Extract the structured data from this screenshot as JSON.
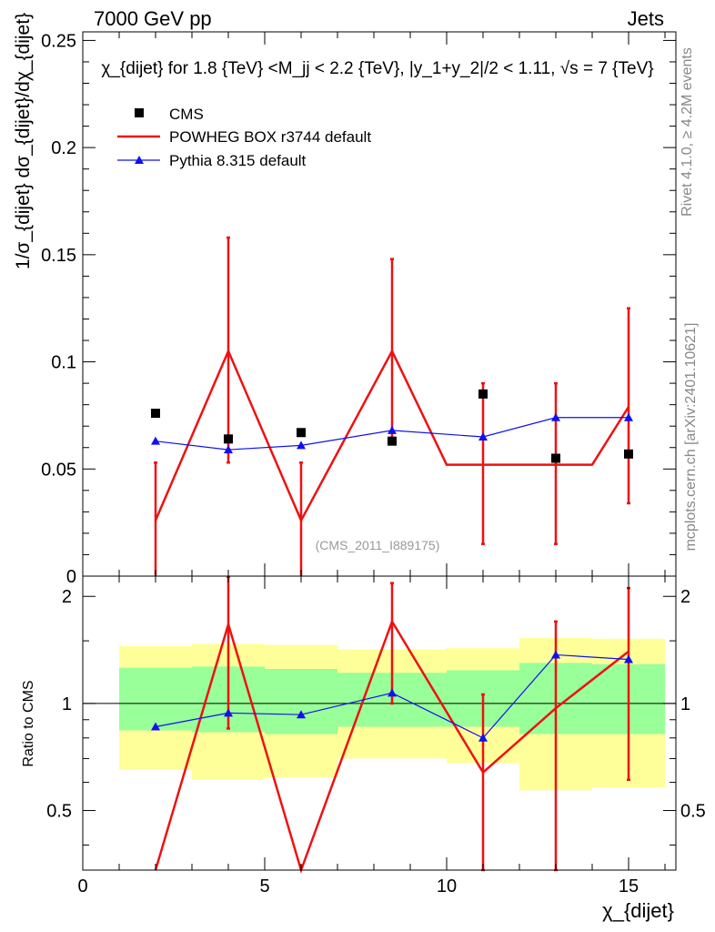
{
  "header": {
    "left_label": "7000 GeV pp",
    "right_label": "Jets"
  },
  "side_labels": {
    "rivet": "Rivet 4.1.0, ≥ 4.2M events",
    "mcplots": "mcplots.cern.ch [arXiv:2401.10621]"
  },
  "watermark": "(CMS_2011_I889175)",
  "colors": {
    "data": "#000000",
    "powheg": "#ee1111",
    "pythia": "#1111ee",
    "band_outer": "#ffff99",
    "band_inner": "#99ff99"
  },
  "chart_data": [
    {
      "type": "line",
      "panel": "main",
      "title": "χ_{dijet} for 1.8 {TeV} <M_jj < 2.2 {TeV}, |y_1+y_2|/2 < 1.11, √s = 7 {TeV}",
      "xlabel": "χ_{dijet}",
      "ylabel": "1/σ_{dijet} dσ_{dijet}/dχ_{dijet}",
      "xlim": [
        0,
        16.3
      ],
      "ylim": [
        0,
        0.254
      ],
      "xticks": [
        0,
        5,
        10,
        15
      ],
      "xticklabels": [
        "0",
        "5",
        "10",
        "15"
      ],
      "yticks": [
        0,
        0.05,
        0.1,
        0.15,
        0.2,
        0.25
      ],
      "yticklabels": [
        "0",
        "0.05",
        "0.1",
        "0.15",
        "0.2",
        "0.25"
      ],
      "legend": [
        "CMS",
        "POWHEG BOX r3744 default",
        "Pythia 8.315 default"
      ],
      "legend_position": "top-left",
      "series": [
        {
          "name": "CMS",
          "style": "markers",
          "x": [
            2,
            4,
            6,
            8.5,
            11,
            13,
            15
          ],
          "y": [
            0.076,
            0.064,
            0.067,
            0.063,
            0.085,
            0.055,
            0.057
          ]
        },
        {
          "name": "POWHEG BOX r3744 default",
          "style": "line-errorbars",
          "x": [
            2,
            4,
            6,
            8.5,
            11,
            13,
            15
          ],
          "y": [
            0.026,
            0.105,
            0.026,
            0.105,
            0.052,
            0.052,
            0.079
          ],
          "err_low": [
            0.052,
            0.052,
            0.052,
            0.043,
            0.037,
            0.037,
            0.045
          ],
          "err_high": [
            0.027,
            0.053,
            0.027,
            0.043,
            0.038,
            0.038,
            0.046
          ],
          "steps": [
            {
              "x": [
                1,
                3
              ],
              "y": 0.026
            },
            {
              "x": [
                3,
                5
              ],
              "y": 0.105
            },
            {
              "x": [
                5,
                7
              ],
              "y": 0.026
            },
            {
              "x": [
                7,
                10
              ],
              "y": 0.105
            },
            {
              "x": [
                10,
                12
              ],
              "y": 0.052
            },
            {
              "x": [
                12,
                14
              ],
              "y": 0.052
            },
            {
              "x": [
                14,
                16
              ],
              "y": 0.079
            }
          ]
        },
        {
          "name": "Pythia 8.315 default",
          "style": "line-triangles",
          "x": [
            2,
            4,
            6,
            8.5,
            11,
            13,
            15
          ],
          "y": [
            0.063,
            0.059,
            0.061,
            0.068,
            0.065,
            0.074,
            0.074
          ]
        }
      ]
    },
    {
      "type": "line",
      "panel": "ratio",
      "xlabel": "χ_{dijet}",
      "ylabel": "Ratio to CMS",
      "xlim": [
        0,
        16.3
      ],
      "ylim": [
        0.34,
        2.28
      ],
      "yticks": [
        0.5,
        1,
        2
      ],
      "yticklabels": [
        "0.5",
        "1",
        "2"
      ],
      "reference_line": 1,
      "bands": [
        {
          "x": [
            1,
            3
          ],
          "outer": [
            0.65,
            1.45
          ],
          "inner": [
            0.84,
            1.26
          ]
        },
        {
          "x": [
            3,
            5
          ],
          "outer": [
            0.61,
            1.47
          ],
          "inner": [
            0.83,
            1.27
          ]
        },
        {
          "x": [
            5,
            7
          ],
          "outer": [
            0.62,
            1.46
          ],
          "inner": [
            0.82,
            1.25
          ]
        },
        {
          "x": [
            7,
            10
          ],
          "outer": [
            0.7,
            1.42
          ],
          "inner": [
            0.86,
            1.22
          ]
        },
        {
          "x": [
            10,
            12
          ],
          "outer": [
            0.68,
            1.43
          ],
          "inner": [
            0.86,
            1.24
          ]
        },
        {
          "x": [
            12,
            14
          ],
          "outer": [
            0.57,
            1.53
          ],
          "inner": [
            0.82,
            1.3
          ]
        },
        {
          "x": [
            14,
            16
          ],
          "outer": [
            0.58,
            1.52
          ],
          "inner": [
            0.82,
            1.29
          ]
        }
      ],
      "series": [
        {
          "name": "POWHEG BOX r3744 default",
          "x": [
            2,
            4,
            6,
            8.5,
            11,
            13,
            15
          ],
          "y": [
            0.34,
            1.67,
            0.34,
            1.7,
            0.64,
            0.97,
            1.4
          ],
          "err_low": [
            0,
            0.82,
            0,
            0.7,
            0.44,
            0.67,
            0.79
          ],
          "err_high": [
            0,
            0.6,
            0,
            0.48,
            0.42,
            0.73,
            0.71
          ]
        },
        {
          "name": "Pythia 8.315 default",
          "x": [
            2,
            4,
            6,
            8.5,
            11,
            13,
            15
          ],
          "y": [
            0.86,
            0.94,
            0.93,
            1.07,
            0.8,
            1.37,
            1.33
          ]
        }
      ]
    }
  ]
}
